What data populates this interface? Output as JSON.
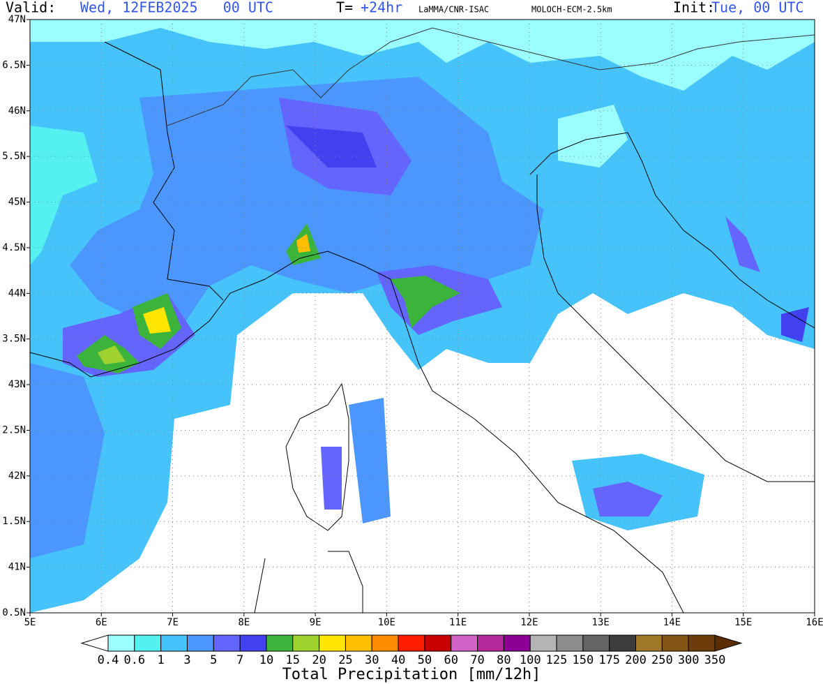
{
  "header": {
    "valid_label": "Valid:",
    "valid_value": "Wed, 12FEB2025   00 UTC",
    "t_label": "T=",
    "t_value": "+24hr",
    "source": "LaMMA/CNR-ISAC",
    "model": "MOLOCH-ECM-2.5km",
    "init_label": "Init:",
    "init_value": "Tue, 00 UTC"
  },
  "map": {
    "x_labels": [
      "5E",
      "6E",
      "7E",
      "8E",
      "9E",
      "10E",
      "11E",
      "12E",
      "13E",
      "14E",
      "15E",
      "16E"
    ],
    "y_labels": [
      "47N",
      "6.5N",
      "46N",
      "5.5N",
      "45N",
      "4.5N",
      "44N",
      "3.5N",
      "43N",
      "2.5N",
      "42N",
      "1.5N",
      "41N",
      "0.5N"
    ]
  },
  "colorbar": {
    "title": "Total Precipitation [mm/12h]",
    "labels": [
      "0.4",
      "0.6",
      "1",
      "3",
      "5",
      "7",
      "10",
      "15",
      "20",
      "25",
      "30",
      "40",
      "50",
      "60",
      "70",
      "80",
      "100",
      "125",
      "150",
      "175",
      "200",
      "250",
      "300",
      "350"
    ],
    "below_color": "#ffffff",
    "colors": [
      "#9bffff",
      "#55f0f0",
      "#46c3fa",
      "#4b96ff",
      "#6464ff",
      "#4141f0",
      "#3cb43c",
      "#a0d22d",
      "#ffe600",
      "#ffbe00",
      "#ff8c00",
      "#ff1e00",
      "#c80000",
      "#d264c8",
      "#b4289b",
      "#8c0096",
      "#b4b4b4",
      "#8c8c8c",
      "#646464",
      "#3c3c3c",
      "#a07828",
      "#825514",
      "#6e3c0a"
    ],
    "above_color": "#5a2d00"
  }
}
